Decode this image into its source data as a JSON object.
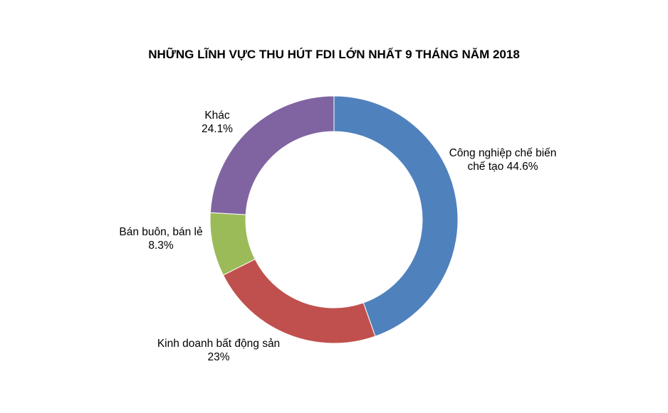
{
  "chart_data": {
    "type": "pie",
    "variant": "donut",
    "title": "NHỮNG LĨNH VỰC THU HÚT FDI LỚN NHẤT 9 THÁNG NĂM 2018",
    "start_angle_deg": 0,
    "direction": "clockwise",
    "legend": "none",
    "slices": [
      {
        "category_lines": [
          "Công nghiệp chế biến",
          "chế tạo"
        ],
        "value_label": "44.6%",
        "value": 44.6,
        "color": "#4F81BD"
      },
      {
        "category_lines": [
          "Kinh doanh bất động sản"
        ],
        "value_label": "23%",
        "value": 23,
        "color": "#C0504D"
      },
      {
        "category_lines": [
          "Bán buôn, bán lẻ"
        ],
        "value_label": "8.3%",
        "value": 8.3,
        "color": "#9BBB59"
      },
      {
        "category_lines": [
          "Khác"
        ],
        "value_label": "24.1%",
        "value": 24.1,
        "color": "#8064A2"
      }
    ]
  }
}
